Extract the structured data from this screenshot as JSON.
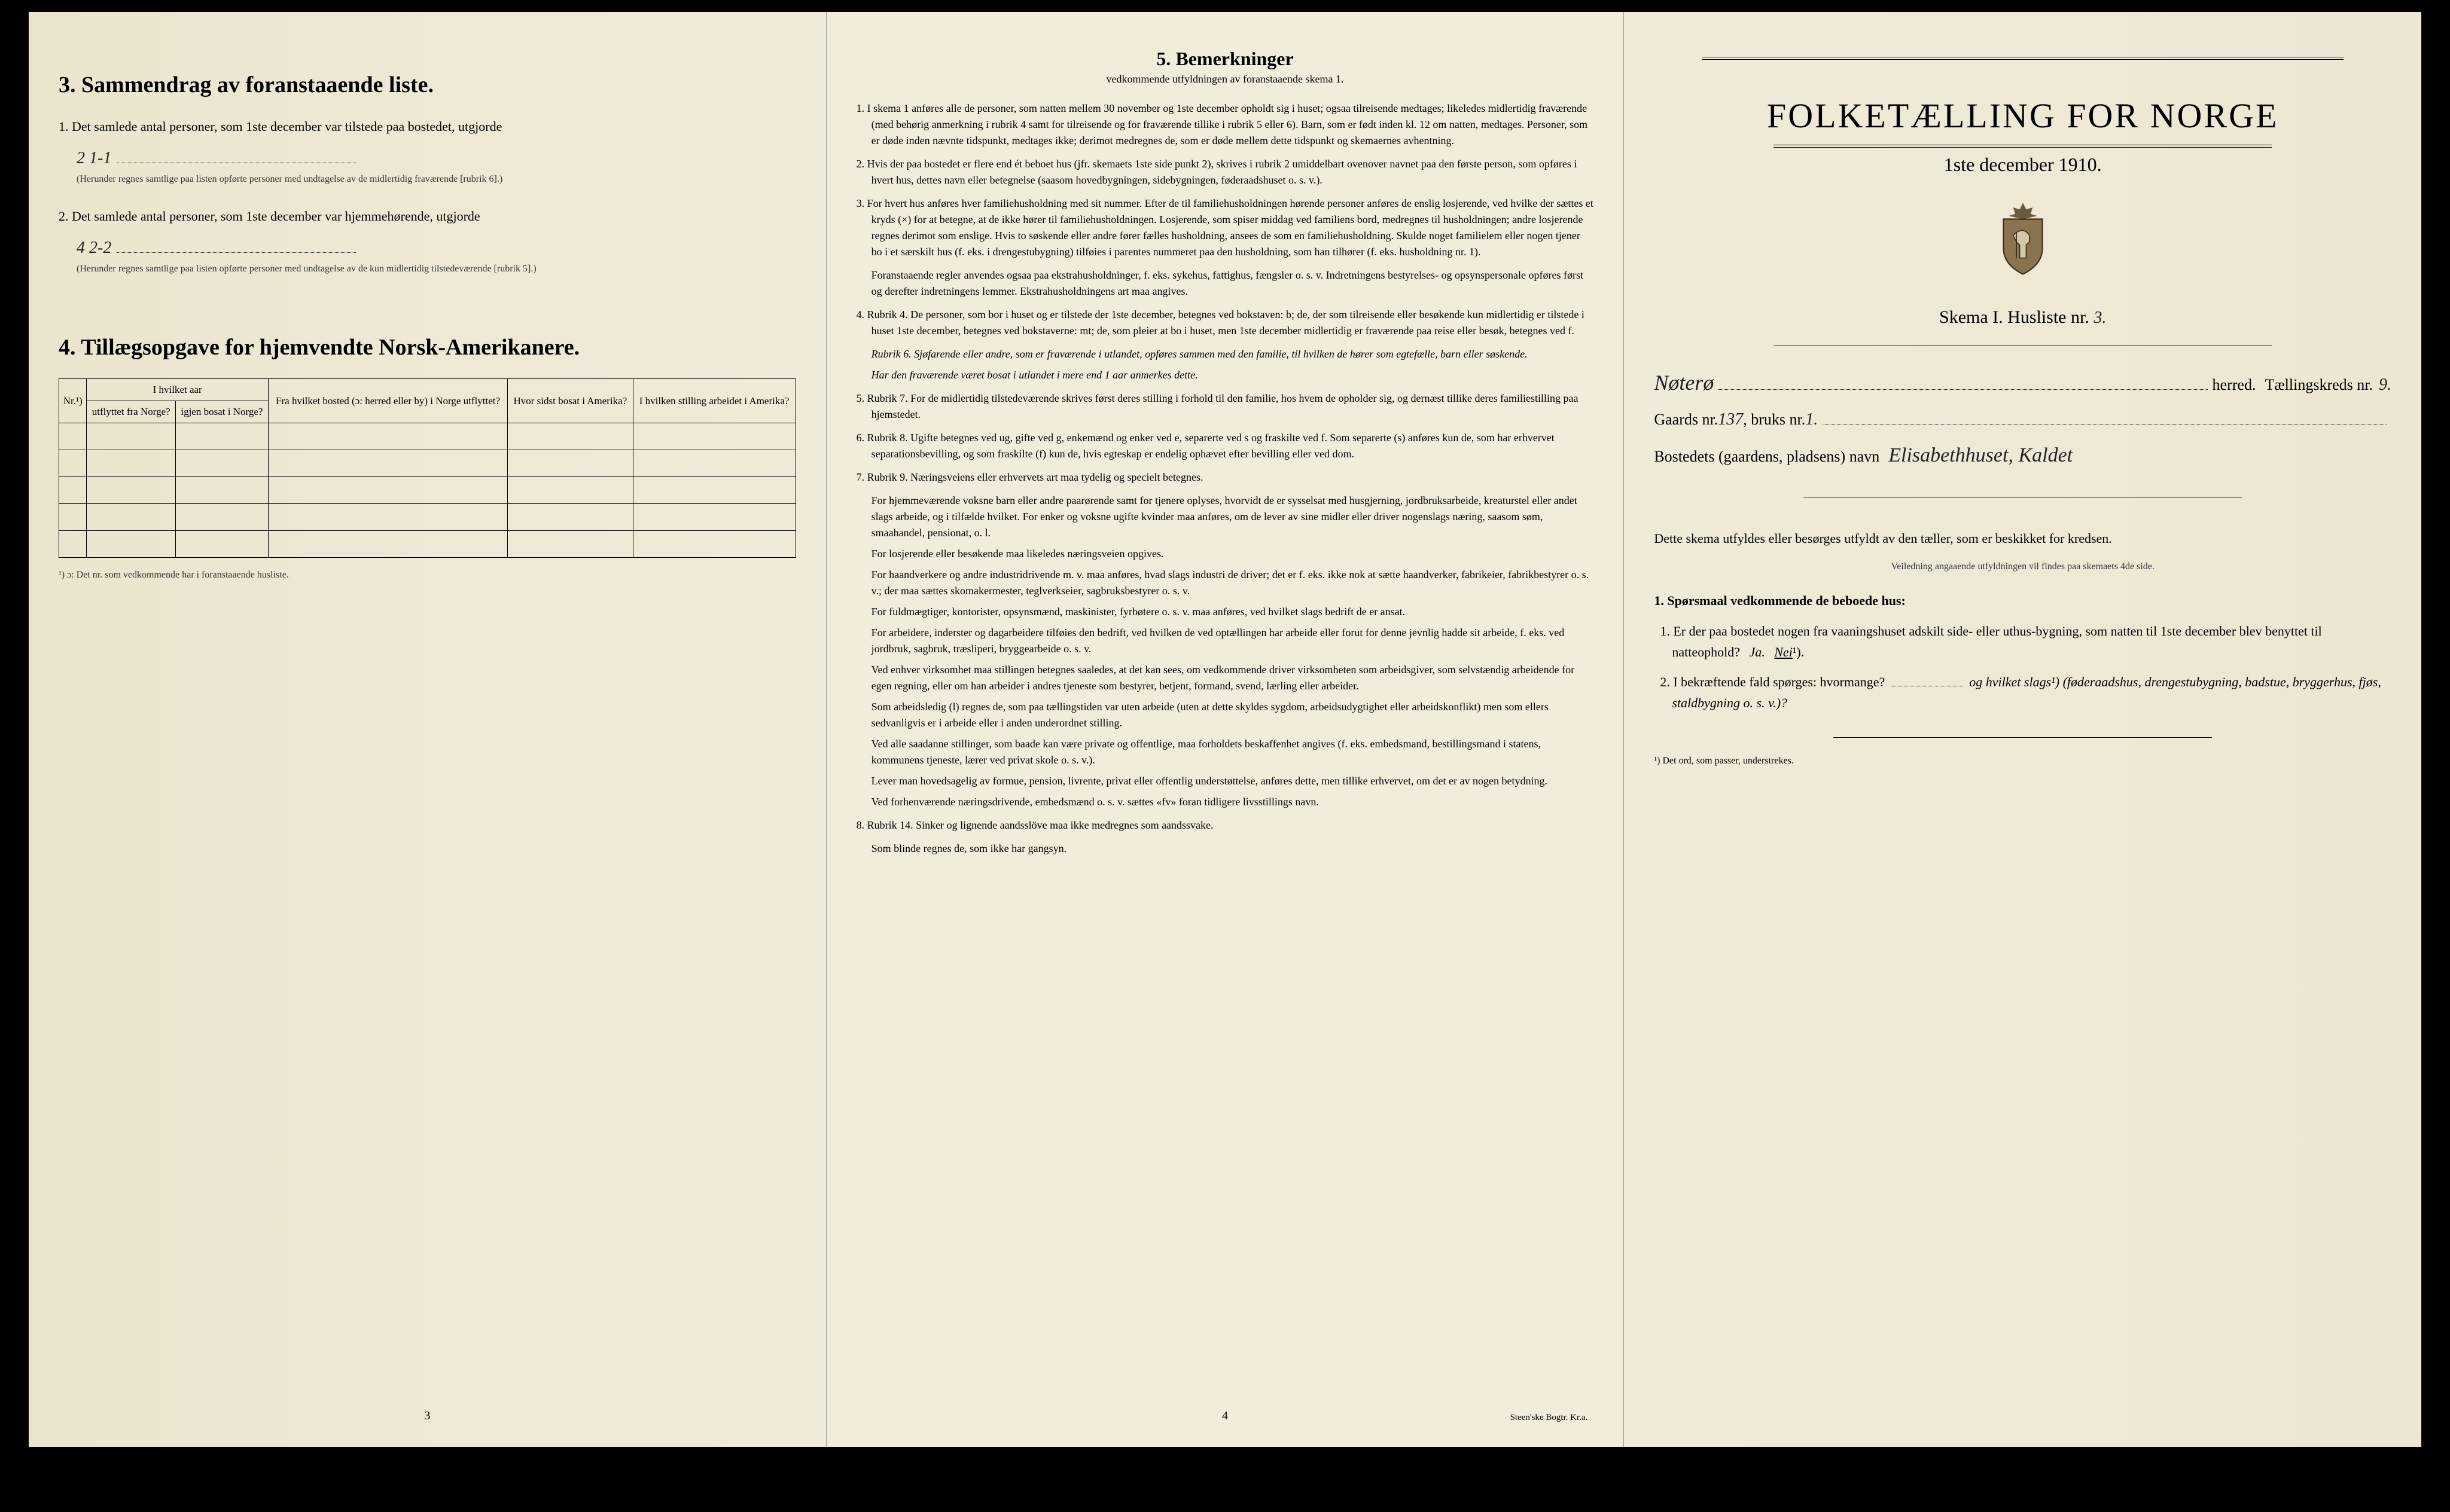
{
  "left_page": {
    "section3_title": "3.   Sammendrag av foranstaaende liste.",
    "item1_num": "1.",
    "item1_text": "Det samlede antal personer, som 1ste december var tilstede paa bostedet, utgjorde",
    "item1_value": "2   1-1",
    "item1_note": "(Herunder regnes samtlige paa listen opførte personer med undtagelse av de midlertidig fraværende [rubrik 6].)",
    "item2_num": "2.",
    "item2_text": "Det samlede antal personer, som 1ste december var hjemmehørende, utgjorde",
    "item2_value": "4   2-2",
    "item2_note": "(Herunder regnes samtlige paa listen opførte personer med undtagelse av de kun midlertidig tilstedeværende [rubrik 5].)",
    "section4_title": "4.  Tillægsopgave for hjemvendte Norsk-Amerikanere.",
    "table": {
      "headers": {
        "col1": "Nr.¹)",
        "col2_group": "I hvilket aar",
        "col2a": "utflyttet fra Norge?",
        "col2b": "igjen bosat i Norge?",
        "col3": "Fra hvilket bosted (ɔ: herred eller by) i Norge utflyttet?",
        "col4": "Hvor sidst bosat i Amerika?",
        "col5": "I hvilken stilling arbeidet i Amerika?"
      },
      "rows": 5
    },
    "table_footnote": "¹) ɔ: Det nr. som vedkommende har i foranstaaende husliste.",
    "page_num": "3"
  },
  "center_page": {
    "title": "5.   Bemerkninger",
    "subtitle": "vedkommende utfyldningen av foranstaaende skema 1.",
    "remarks": [
      {
        "num": "1.",
        "text": "I skema 1 anføres alle de personer, som natten mellem 30 november og 1ste december opholdt sig i huset; ogsaa tilreisende medtages; likeledes midlertidig fraværende (med behørig anmerkning i rubrik 4 samt for tilreisende og for fraværende tillike i rubrik 5 eller 6). Barn, som er født inden kl. 12 om natten, medtages. Personer, som er døde inden nævnte tidspunkt, medtages ikke; derimot medregnes de, som er døde mellem dette tidspunkt og skemaernes avhentning."
      },
      {
        "num": "2.",
        "text": "Hvis der paa bostedet er flere end ét beboet hus (jfr. skemaets 1ste side punkt 2), skrives i rubrik 2 umiddelbart ovenover navnet paa den første person, som opføres i hvert hus, dettes navn eller betegnelse (saasom hovedbygningen, sidebygningen, føderaadshuset o. s. v.)."
      },
      {
        "num": "3.",
        "text": "For hvert hus anføres hver familiehusholdning med sit nummer. Efter de til familiehusholdningen hørende personer anføres de enslig losjerende, ved hvilke der sættes et kryds (×) for at betegne, at de ikke hører til familiehusholdningen. Losjerende, som spiser middag ved familiens bord, medregnes til husholdningen; andre losjerende regnes derimot som enslige. Hvis to søskende eller andre fører fælles husholdning, ansees de som en familiehusholdning. Skulde noget familielem eller nogen tjener bo i et særskilt hus (f. eks. i drengestubygning) tilføies i parentes nummeret paa den husholdning, som han tilhører (f. eks. husholdning nr. 1).",
        "paras": [
          "Foranstaaende regler anvendes ogsaa paa ekstrahusholdninger, f. eks. sykehus, fattighus, fængsler o. s. v. Indretningens bestyrelses- og opsynspersonale opføres først og derefter indretningens lemmer. Ekstrahusholdningens art maa angives."
        ]
      },
      {
        "num": "4.",
        "text": "Rubrik 4. De personer, som bor i huset og er tilstede der 1ste december, betegnes ved bokstaven: b; de, der som tilreisende eller besøkende kun midlertidig er tilstede i huset 1ste december, betegnes ved bokstaverne: mt; de, som pleier at bo i huset, men 1ste december midlertidig er fraværende paa reise eller besøk, betegnes ved f.",
        "subs": [
          "Rubrik 6. Sjøfarende eller andre, som er fraværende i utlandet, opføres sammen med den familie, til hvilken de hører som egtefælle, barn eller søskende.",
          "Har den fraværende været bosat i utlandet i mere end 1 aar anmerkes dette."
        ]
      },
      {
        "num": "5.",
        "text": "Rubrik 7. For de midlertidig tilstedeværende skrives først deres stilling i forhold til den familie, hos hvem de opholder sig, og dernæst tillike deres familiestilling paa hjemstedet."
      },
      {
        "num": "6.",
        "text": "Rubrik 8. Ugifte betegnes ved ug, gifte ved g, enkemænd og enker ved e, separerte ved s og fraskilte ved f. Som separerte (s) anføres kun de, som har erhvervet separationsbevilling, og som fraskilte (f) kun de, hvis egteskap er endelig ophævet efter bevilling eller ved dom."
      },
      {
        "num": "7.",
        "text": "Rubrik 9. Næringsveiens eller erhvervets art maa tydelig og specielt betegnes.",
        "paras": [
          "For hjemmeværende voksne barn eller andre paarørende samt for tjenere oplyses, hvorvidt de er sysselsat med husgjerning, jordbruksarbeide, kreaturstel eller andet slags arbeide, og i tilfælde hvilket. For enker og voksne ugifte kvinder maa anføres, om de lever av sine midler eller driver nogenslags næring, saasom søm, smaahandel, pensionat, o. l.",
          "For losjerende eller besøkende maa likeledes næringsveien opgives.",
          "For haandverkere og andre industridrivende m. v. maa anføres, hvad slags industri de driver; det er f. eks. ikke nok at sætte haandverker, fabrikeier, fabrikbestyrer o. s. v.; der maa sættes skomakermester, teglverkseier, sagbruksbestyrer o. s. v.",
          "For fuldmægtiger, kontorister, opsynsmænd, maskinister, fyrbøtere o. s. v. maa anføres, ved hvilket slags bedrift de er ansat.",
          "For arbeidere, inderster og dagarbeidere tilføies den bedrift, ved hvilken de ved optællingen har arbeide eller forut for denne jevnlig hadde sit arbeide, f. eks. ved jordbruk, sagbruk, træsliperi, bryggearbeide o. s. v.",
          "Ved enhver virksomhet maa stillingen betegnes saaledes, at det kan sees, om vedkommende driver virksomheten som arbeidsgiver, som selvstændig arbeidende for egen regning, eller om han arbeider i andres tjeneste som bestyrer, betjent, formand, svend, lærling eller arbeider.",
          "Som arbeidsledig (l) regnes de, som paa tællingstiden var uten arbeide (uten at dette skyldes sygdom, arbeidsudygtighet eller arbeidskonflikt) men som ellers sedvanligvis er i arbeide eller i anden underordnet stilling.",
          "Ved alle saadanne stillinger, som baade kan være private og offentlige, maa forholdets beskaffenhet angives (f. eks. embedsmand, bestillingsmand i statens, kommunens tjeneste, lærer ved privat skole o. s. v.).",
          "Lever man hovedsagelig av formue, pension, livrente, privat eller offentlig understøttelse, anføres dette, men tillike erhvervet, om det er av nogen betydning.",
          "Ved forhenværende næringsdrivende, embedsmænd o. s. v. sættes «fv» foran tidligere livsstillings navn."
        ]
      },
      {
        "num": "8.",
        "text": "Rubrik 14. Sinker og lignende aandsslöve maa ikke medregnes som aandssvake.",
        "paras": [
          "Som blinde regnes de, som ikke har gangsyn."
        ]
      }
    ],
    "page_num": "4",
    "printer": "Steen'ske Bogtr. Kr.a."
  },
  "right_page": {
    "banner_title": "FOLKETÆLLING FOR NORGE",
    "banner_subtitle": "1ste december 1910.",
    "skema_label": "Skema I.   Husliste nr.",
    "skema_value": "3.",
    "herred_value": "Nøterø",
    "herred_label": "herred.",
    "kreds_label": "Tællingskreds nr.",
    "kreds_value": "9.",
    "gaards_label": "Gaards nr.",
    "gaards_value": "137",
    "bruks_label": ", bruks nr.",
    "bruks_value": "1.",
    "bosted_label": "Bostedets (gaardens, pladsens) navn",
    "bosted_value": "Elisabethhuset, Kaldet",
    "instruction1": "Dette skema utfyldes eller besørges utfyldt av den tæller, som er beskikket for kredsen.",
    "instruction2": "Veiledning angaaende utfyldningen vil findes paa skemaets 4de side.",
    "q_heading": "1. Spørsmaal vedkommende de beboede hus:",
    "q1_num": "1.",
    "q1_text": "Er der paa bostedet nogen fra vaaningshuset adskilt side- eller uthus-bygning, som natten til 1ste december blev benyttet til natteophold?",
    "q1_ja": "Ja.",
    "q1_nei": "Nei",
    "q1_sup": "¹).",
    "q2_num": "2.",
    "q2_text": "I bekræftende fald spørges: hvormange?",
    "q2_text2": "og hvilket slags¹) (føderaadshus, drengestubygning, badstue, bryggerhus, fjøs, staldbygning o. s. v.)?",
    "footnote": "¹) Det ord, som passer, understrekes."
  },
  "colors": {
    "paper": "#f0ead8",
    "text": "#000000",
    "handwriting": "#222222"
  }
}
